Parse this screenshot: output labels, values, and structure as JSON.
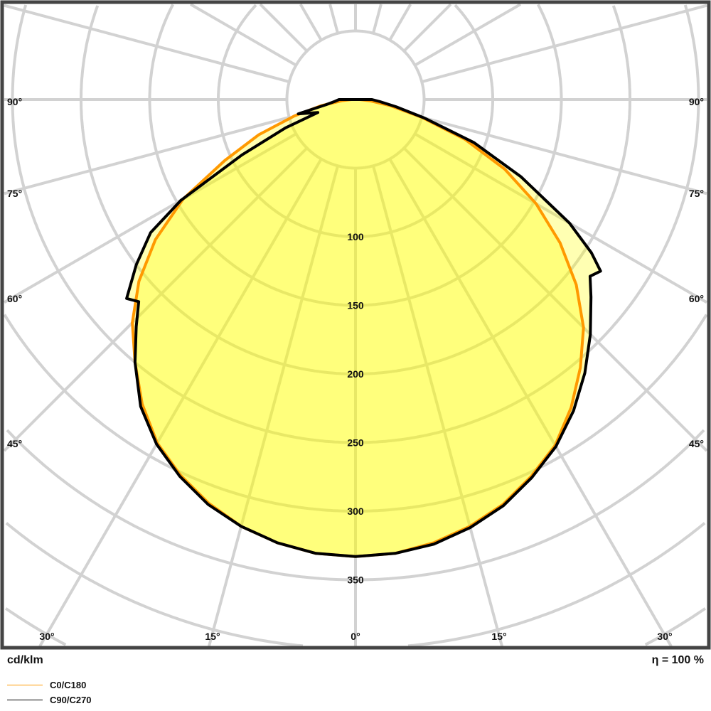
{
  "chart_data": {
    "type": "polar",
    "unit_label": "cd/klm",
    "efficiency_label": "η = 100 %",
    "radial_ticks": [
      100,
      150,
      200,
      250,
      300,
      350
    ],
    "radial_tick_labels": [
      "100",
      "150",
      "200",
      "250",
      "300",
      "350"
    ],
    "ring_step": 50,
    "angle_step_deg": 15,
    "angle_labels_side": [
      "90°",
      "75°",
      "60°",
      "45°"
    ],
    "angle_labels_bottom": [
      "30°",
      "15°",
      "0°",
      "15°",
      "30°"
    ],
    "grid": true,
    "legend_position": "bottom-left",
    "series": [
      {
        "name": "C0/C180",
        "color": "#ff9900",
        "left_angles": [
          0,
          5,
          10,
          15,
          20,
          25,
          30,
          35,
          40,
          45,
          50,
          55,
          60,
          65,
          70,
          75,
          80,
          85,
          90
        ],
        "left_values": [
          333,
          332,
          328,
          322,
          313,
          302,
          289,
          271,
          250,
          230,
          206,
          178,
          145,
          105,
          75,
          46,
          25,
          10,
          3
        ],
        "right_angles": [
          0,
          5,
          10,
          15,
          20,
          25,
          30,
          35,
          40,
          45,
          50,
          55,
          60,
          65,
          70,
          75,
          80,
          85,
          90
        ],
        "right_values": [
          333,
          332,
          328,
          322,
          314,
          303,
          291,
          274,
          255,
          235,
          210,
          182,
          152,
          120,
          85,
          50,
          26,
          11,
          3
        ]
      },
      {
        "name": "C90/C270",
        "color": "#000000",
        "left_angles": [
          0,
          5,
          10,
          15,
          20,
          25,
          30,
          35,
          40,
          44,
          47,
          49,
          53,
          57,
          60,
          64,
          68,
          71,
          76,
          80,
          85,
          90
        ],
        "left_values": [
          333,
          332,
          328,
          322,
          314,
          303,
          290,
          273,
          250,
          230,
          216,
          221,
          200,
          178,
          147,
          92,
          55,
          29,
          43,
          22,
          15,
          12
        ],
        "right_angles": [
          0,
          5,
          10,
          15,
          20,
          25,
          30,
          35,
          40,
          45,
          50,
          53,
          55,
          57,
          60,
          65,
          70,
          75,
          80,
          85,
          90
        ],
        "right_values": [
          333,
          332,
          329,
          323,
          315,
          304,
          292,
          277,
          260,
          242,
          224,
          214,
          218,
          205,
          180,
          133,
          92,
          52,
          30,
          18,
          12
        ]
      }
    ]
  },
  "footer": {
    "unit": "cd/klm",
    "efficiency": "η = 100 %"
  },
  "legend": [
    {
      "label": "C0/C180",
      "color": "#ff9900"
    },
    {
      "label": "C90/C270",
      "color": "#000000"
    }
  ]
}
